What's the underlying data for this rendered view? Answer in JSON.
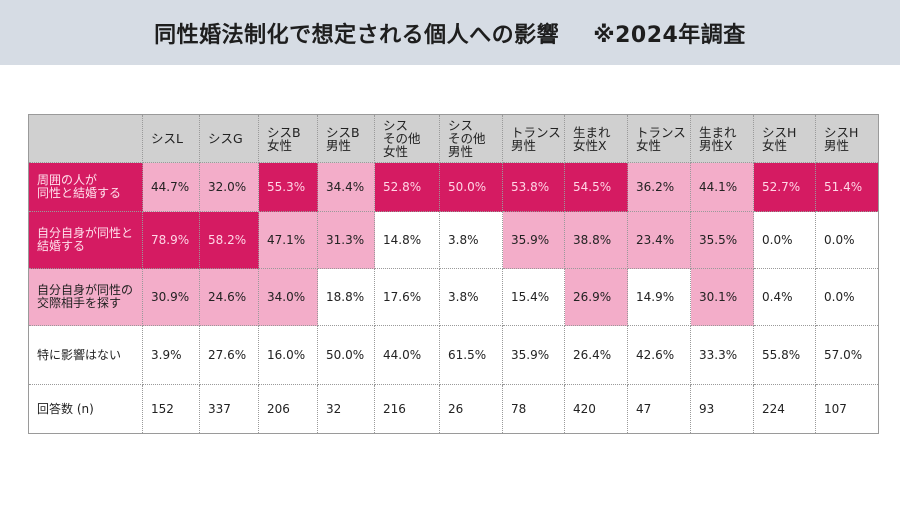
{
  "header": {
    "title": "同性婚法制化で想定される個人への影響",
    "note": "※2024年調査"
  },
  "colors": {
    "dark": "#d51b62",
    "light": "#f3adc9",
    "header_bg": "#d0d0d0",
    "title_bg": "#d6dce4"
  },
  "chart_data": {
    "type": "table",
    "title": "同性婚法制化で想定される個人への影響 ※2024年調査",
    "columns": [
      "シスL",
      "シスG",
      "シスB\n女性",
      "シスB\n男性",
      "シス\nその他\n女性",
      "シス\nその他\n男性",
      "トランス\n男性",
      "生まれ\n女性X",
      "トランス\n女性",
      "生まれ\n男性X",
      "シスH\n女性",
      "シスH\n男性"
    ],
    "rows": [
      {
        "label": "周囲の人が\n同性と結婚する",
        "label_style": "dark",
        "values": [
          "44.7%",
          "32.0%",
          "55.3%",
          "34.4%",
          "52.8%",
          "50.0%",
          "53.8%",
          "54.5%",
          "36.2%",
          "44.1%",
          "52.7%",
          "51.4%"
        ],
        "styles": [
          "light",
          "light",
          "dark",
          "light",
          "dark",
          "dark",
          "dark",
          "dark",
          "light",
          "light",
          "dark",
          "dark"
        ]
      },
      {
        "label": "自分自身が同性と\n結婚する",
        "label_style": "dark",
        "values": [
          "78.9%",
          "58.2%",
          "47.1%",
          "31.3%",
          "14.8%",
          "3.8%",
          "35.9%",
          "38.8%",
          "23.4%",
          "35.5%",
          "0.0%",
          "0.0%"
        ],
        "styles": [
          "dark",
          "dark",
          "light",
          "light",
          "white",
          "white",
          "light",
          "light",
          "light",
          "light",
          "white",
          "white"
        ]
      },
      {
        "label": "自分自身が同性の\n交際相手を探す",
        "label_style": "light",
        "values": [
          "30.9%",
          "24.6%",
          "34.0%",
          "18.8%",
          "17.6%",
          "3.8%",
          "15.4%",
          "26.9%",
          "14.9%",
          "30.1%",
          "0.4%",
          "0.0%"
        ],
        "styles": [
          "light",
          "light",
          "light",
          "white",
          "white",
          "white",
          "white",
          "light",
          "white",
          "light",
          "white",
          "white"
        ]
      },
      {
        "label": "特に影響はない",
        "label_style": "white",
        "values": [
          "3.9%",
          "27.6%",
          "16.0%",
          "50.0%",
          "44.0%",
          "61.5%",
          "35.9%",
          "26.4%",
          "42.6%",
          "33.3%",
          "55.8%",
          "57.0%"
        ],
        "styles": [
          "white",
          "white",
          "white",
          "white",
          "white",
          "white",
          "white",
          "white",
          "white",
          "white",
          "white",
          "white"
        ]
      },
      {
        "label": "回答数 (n)",
        "label_style": "white",
        "values": [
          "152",
          "337",
          "206",
          "32",
          "216",
          "26",
          "78",
          "420",
          "47",
          "93",
          "224",
          "107"
        ],
        "styles": [
          "white",
          "white",
          "white",
          "white",
          "white",
          "white",
          "white",
          "white",
          "white",
          "white",
          "white",
          "white"
        ]
      }
    ]
  }
}
